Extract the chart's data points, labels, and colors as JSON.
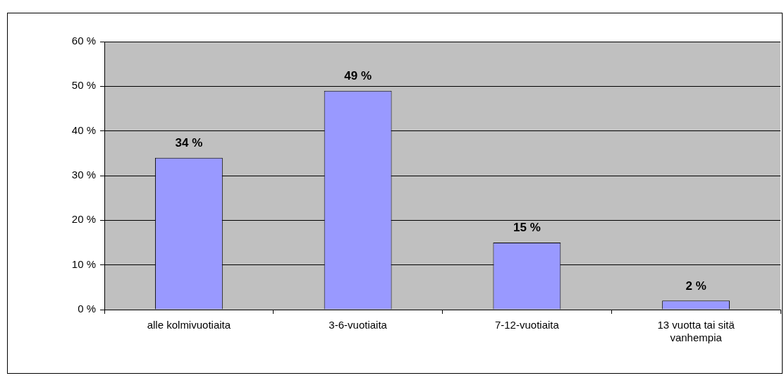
{
  "chart_data": {
    "type": "bar",
    "categories": [
      "alle kolmivuotiaita",
      "3-6-vuotiaita",
      "7-12-vuotiaita",
      "13 vuotta tai sitä vanhempia"
    ],
    "values": [
      34,
      49,
      15,
      2
    ],
    "color": "#9999ff",
    "value_labels": [
      "34 %",
      "49 %",
      "15 %",
      "2 %"
    ],
    "ylim": [
      0,
      60
    ],
    "yticks": [
      {
        "value": 0,
        "label": "0 %"
      },
      {
        "value": 10,
        "label": "10 %"
      },
      {
        "value": 20,
        "label": "20 %"
      },
      {
        "value": 30,
        "label": "30 %"
      },
      {
        "value": 40,
        "label": "40 %"
      },
      {
        "value": 50,
        "label": "50 %"
      },
      {
        "value": 60,
        "label": "60 %"
      }
    ],
    "grid": "y"
  }
}
